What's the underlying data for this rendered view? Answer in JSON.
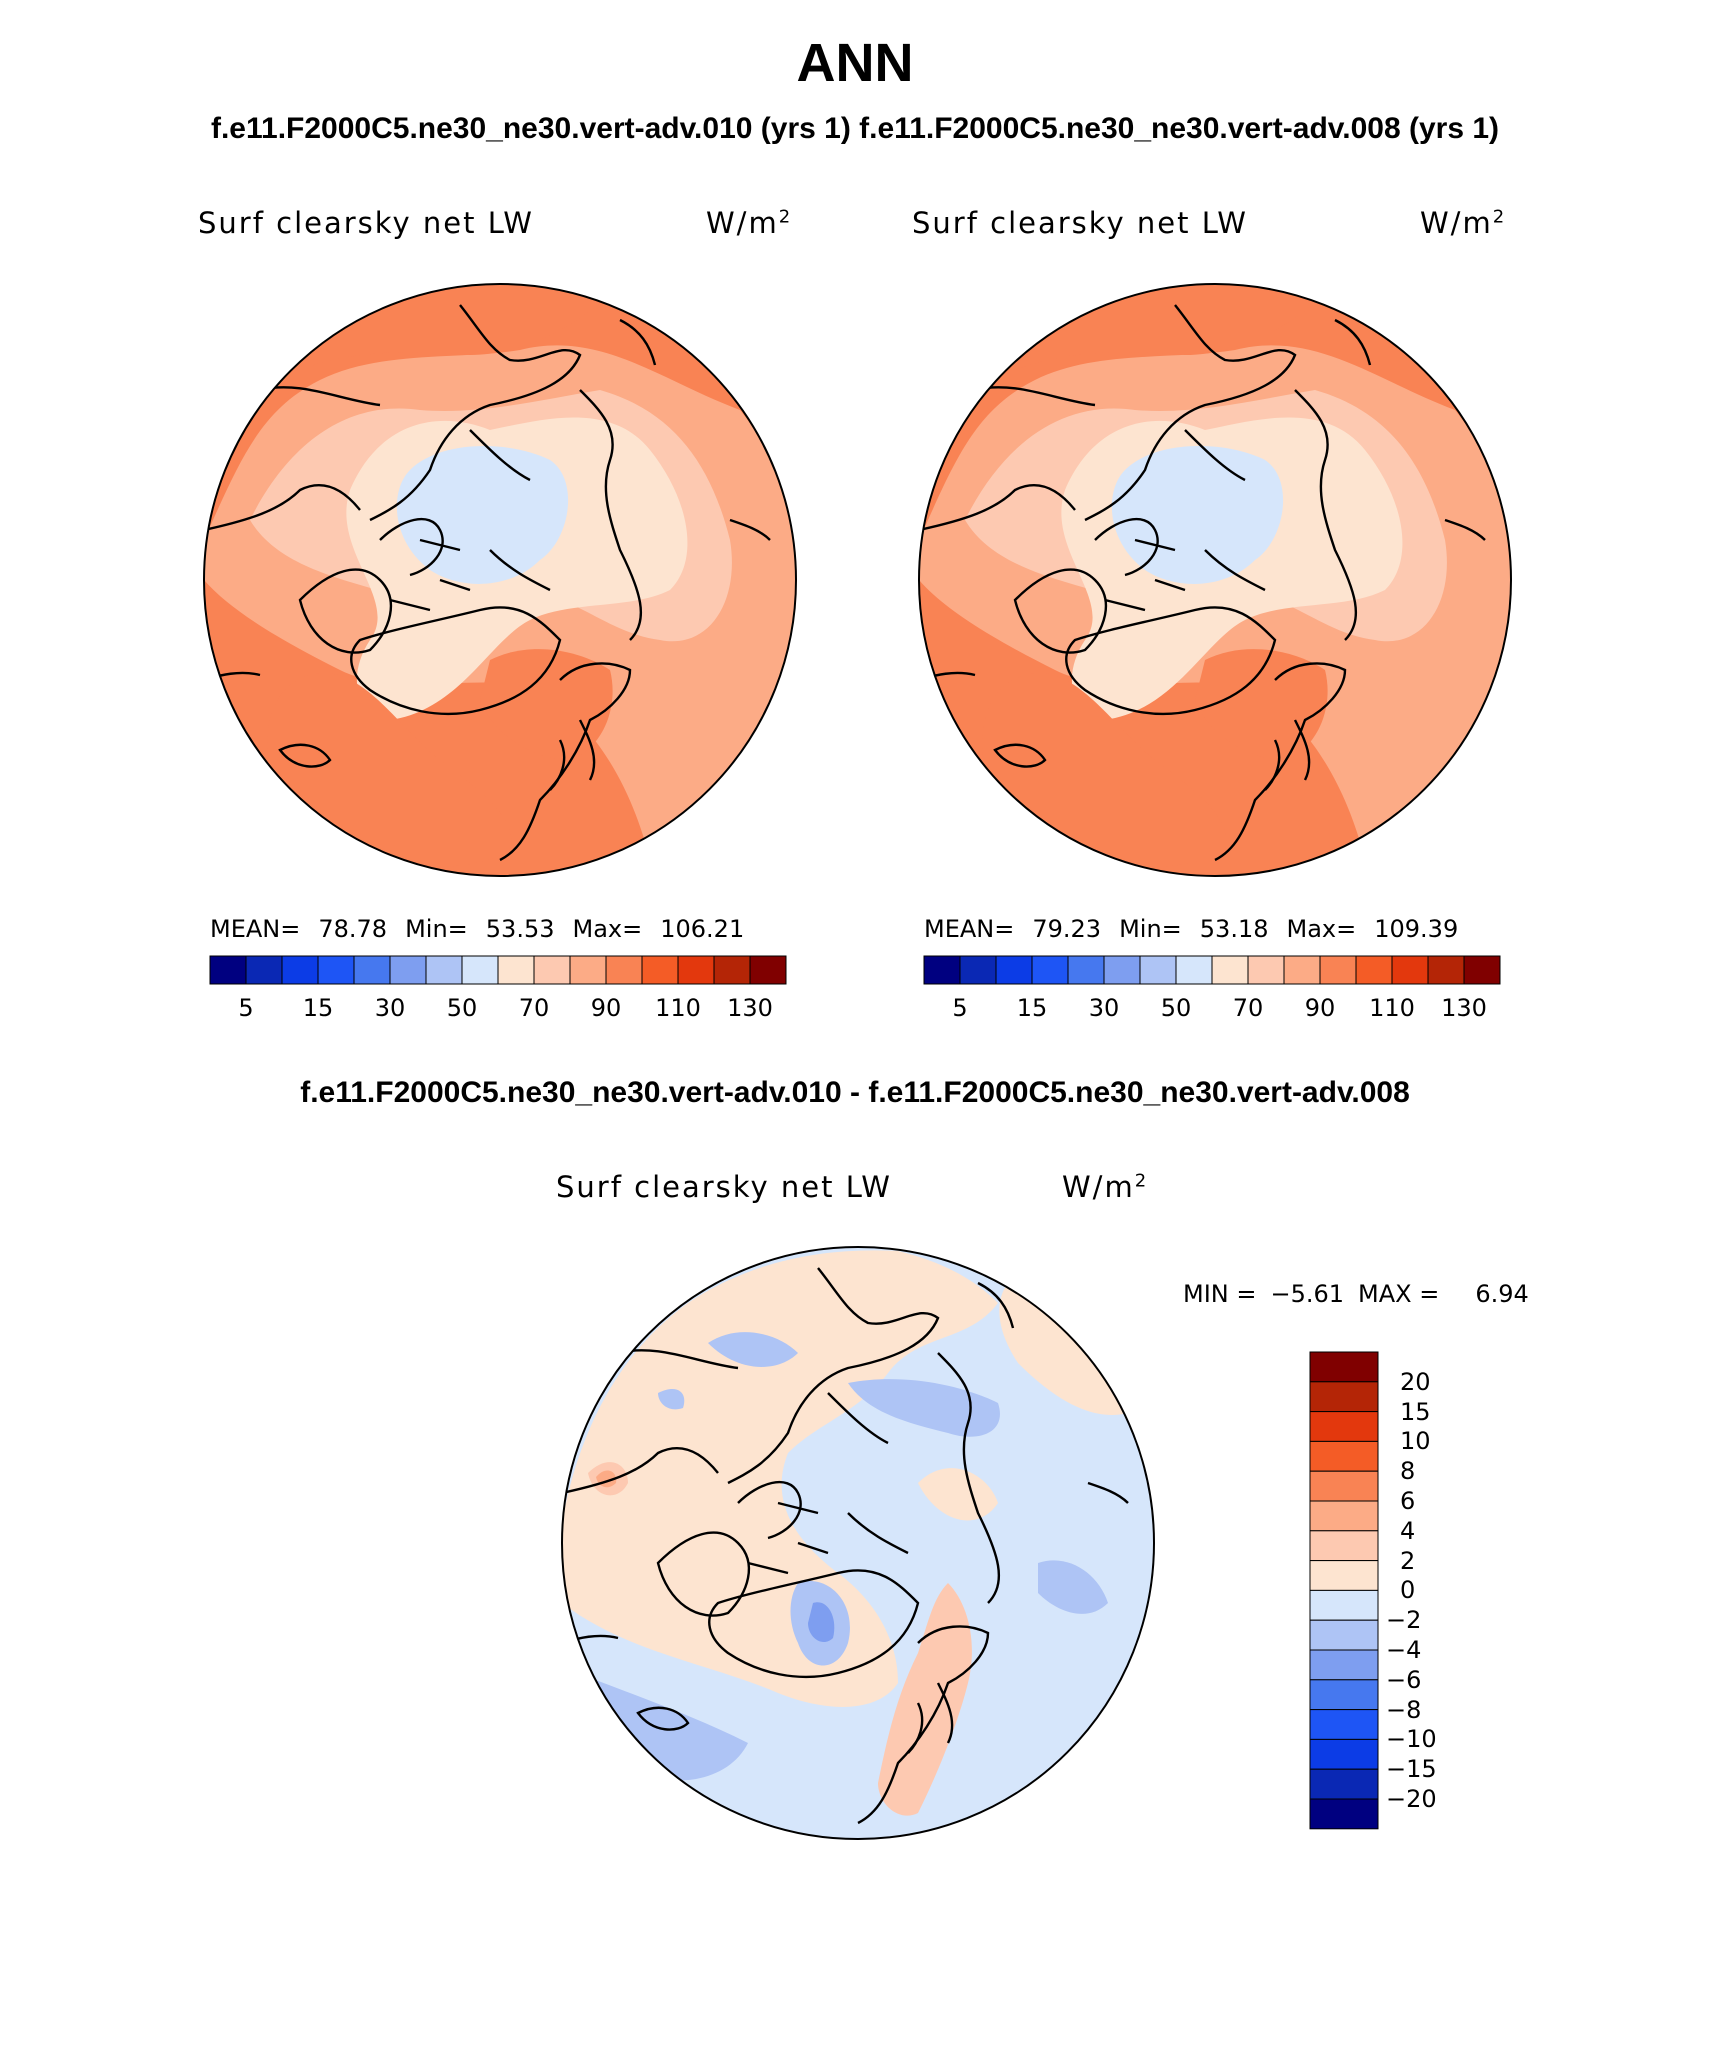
{
  "title": "ANN",
  "runs_title": "f.e11.F2000C5.ne30_ne30.vert-adv.010 (yrs 1) f.e11.F2000C5.ne30_ne30.vert-adv.008 (yrs 1)",
  "diff_title": "f.e11.F2000C5.ne30_ne30.vert-adv.010 - f.e11.F2000C5.ne30_ne30.vert-adv.008",
  "variable": "Surf clearsky net LW",
  "units": "W/m",
  "units_sup": "2",
  "panel1": {
    "mean_label": "MEAN=",
    "mean": "78.78",
    "min_label": "Min=",
    "min": "53.53",
    "max_label": "Max=",
    "max": "106.21"
  },
  "panel2": {
    "mean_label": "MEAN=",
    "mean": "79.23",
    "min_label": "Min=",
    "min": "53.18",
    "max_label": "Max=",
    "max": "109.39"
  },
  "panel3": {
    "min_label": "MIN =",
    "min": "−5.61",
    "max_label": "MAX =",
    "max": "6.94"
  },
  "abs_colorbar": {
    "ticks": [
      "5",
      "15",
      "30",
      "50",
      "70",
      "90",
      "110",
      "130"
    ],
    "colors": [
      "#000080",
      "#0a28b4",
      "#0c3ce6",
      "#1e55f5",
      "#4678ef",
      "#7e9ef0",
      "#aec4f5",
      "#d6e6fb",
      "#fde4d0",
      "#fdc9b1",
      "#fcab86",
      "#f98354",
      "#f45c26",
      "#e3380d",
      "#b42506",
      "#800000"
    ]
  },
  "diff_colorbar": {
    "ticks": [
      "20",
      "15",
      "10",
      "8",
      "6",
      "4",
      "2",
      "0",
      "−2",
      "−4",
      "−6",
      "−8",
      "−10",
      "−15",
      "−20"
    ],
    "colors": [
      "#800000",
      "#b42506",
      "#e3380d",
      "#f45c26",
      "#f98354",
      "#fcab86",
      "#fdc9b1",
      "#fde4d0",
      "#d6e6fb",
      "#aec4f5",
      "#7e9ef0",
      "#4678ef",
      "#1e55f5",
      "#0c3ce6",
      "#0a28b4",
      "#000080"
    ]
  },
  "map_colors": {
    "c50_70": "#d6e6fb",
    "c70_80": "#fde4d0",
    "c80_90": "#fdc9b1",
    "c90_100": "#fcab86",
    "c100_110": "#f98354",
    "d0_2": "#fde4d0",
    "d2_4": "#fdc9b1",
    "d4_6": "#fcab86",
    "dm2_0": "#d6e6fb",
    "dm4_m2": "#aec4f5",
    "dm6_m4": "#7e9ef0"
  }
}
